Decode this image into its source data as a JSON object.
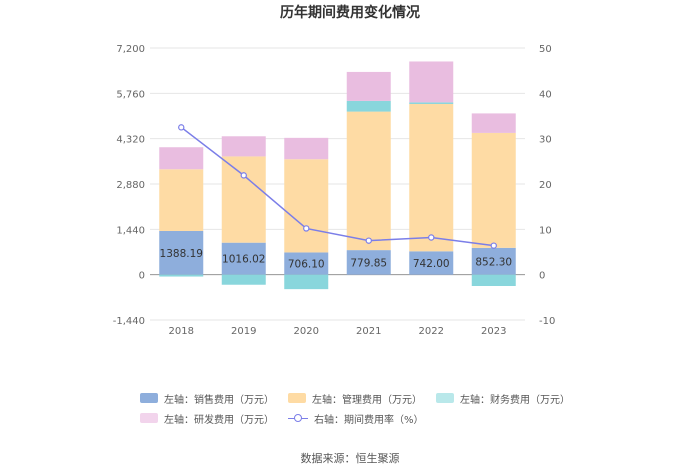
{
  "chart_data": {
    "type": "bar",
    "title": "历年期间费用变化情况",
    "categories": [
      "2018",
      "2019",
      "2020",
      "2021",
      "2022",
      "2023"
    ],
    "left_axis": {
      "min": -1440,
      "max": 7200,
      "ticks": [
        "-1,440",
        "0",
        "1,440",
        "2,880",
        "4,320",
        "5,760",
        "7,200"
      ]
    },
    "right_axis": {
      "min": -10,
      "max": 50,
      "ticks": [
        "-10",
        "0",
        "10",
        "20",
        "30",
        "40",
        "50"
      ]
    },
    "series": [
      {
        "name": "左轴：销售费用（万元）",
        "color": "#8eaedc",
        "axis": "left",
        "values": [
          1388.19,
          1016.02,
          706.1,
          779.85,
          742.0,
          852.3
        ],
        "labels": [
          "1388.19",
          "1016.02",
          "706.10",
          "779.85",
          "742.00",
          "852.30"
        ]
      },
      {
        "name": "左轴：管理费用（万元）",
        "color": "#fedba4",
        "axis": "left",
        "values": [
          1960,
          2740,
          2960,
          4400,
          4680,
          3650
        ]
      },
      {
        "name": "左轴：财务费用（万元）",
        "color": "#89d6dc",
        "axis": "left",
        "values": [
          -60,
          -320,
          -460,
          340,
          50,
          -360
        ]
      },
      {
        "name": "左轴：研发费用（万元）",
        "color": "#e9bde0",
        "axis": "left",
        "values": [
          700,
          640,
          680,
          920,
          1300,
          620
        ]
      },
      {
        "name": "右轴：期间费用率（%）",
        "color": "#7b7ee8",
        "axis": "right",
        "type": "line",
        "values": [
          32.5,
          21.9,
          10.2,
          7.5,
          8.2,
          6.4
        ]
      }
    ]
  },
  "source": "数据来源：恒生聚源"
}
